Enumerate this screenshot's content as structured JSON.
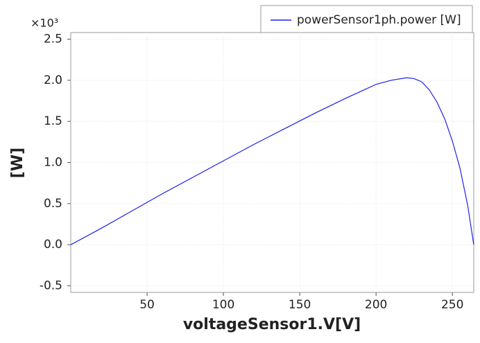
{
  "chart_data": {
    "type": "line",
    "xlabel": "voltageSensor1.V[V]",
    "ylabel": "[W]",
    "y_multiplier": "×10³",
    "x": [
      0,
      20,
      40,
      60,
      80,
      100,
      120,
      140,
      160,
      180,
      200,
      210,
      220,
      225,
      230,
      235,
      240,
      245,
      250,
      255,
      260,
      264
    ],
    "series": [
      {
        "name": "powerSensor1ph.power [W]",
        "color": "#1f1fe8",
        "values": [
          0,
          0.2,
          0.41,
          0.62,
          0.82,
          1.02,
          1.22,
          1.41,
          1.6,
          1.78,
          1.95,
          2.0,
          2.03,
          2.02,
          1.98,
          1.88,
          1.73,
          1.53,
          1.26,
          0.93,
          0.48,
          0
        ]
      }
    ],
    "xlim": [
      0,
      264
    ],
    "ylim": [
      -0.58,
      2.58
    ],
    "xticks": [
      50,
      100,
      150,
      200,
      250
    ],
    "yticks": [
      -0.5,
      {
        "value": 0,
        "label": "0.0"
      },
      0.5,
      {
        "value": 1,
        "label": "1.0"
      },
      1.5,
      {
        "value": 2,
        "label": "2.0"
      },
      2.5
    ],
    "grid": true,
    "legend": "top-right"
  }
}
